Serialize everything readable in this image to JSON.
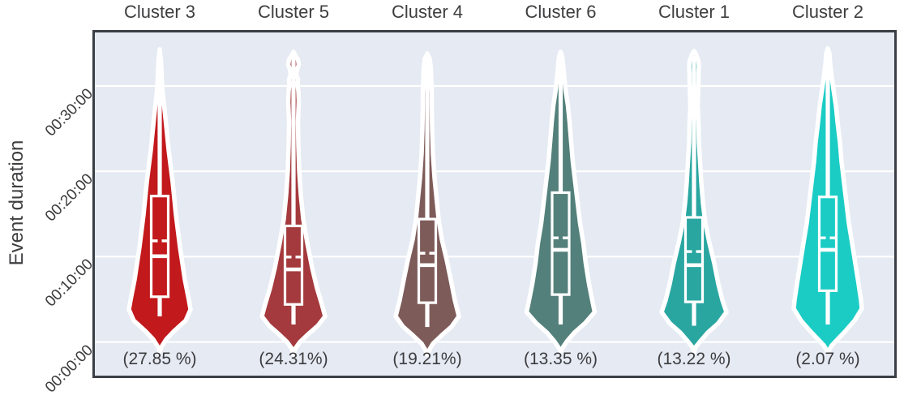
{
  "chart_data": {
    "type": "violin",
    "title": "",
    "xlabel": "",
    "ylabel": "Event duration",
    "y_ticks": [
      "00:00:00",
      "00:10:00",
      "00:20:00",
      "00:30:00"
    ],
    "ylim_minutes": [
      -4.1,
      36.5
    ],
    "grid": true,
    "legend": false,
    "colors": {
      "plot_background": "#e5eaf3",
      "gridline": "#ffffff",
      "axis_border": "#3a3e45",
      "text": "#3e3e40",
      "violin_outline": "#ffffff"
    },
    "clusters": [
      {
        "label": "Cluster 3",
        "share_label": "(27.85 %)",
        "share_pct": 27.85,
        "color": "#c2191c",
        "stats_min": {
          "whisker_low": 3.0,
          "q1": 5.3,
          "median": 10.05,
          "mean": 11.85,
          "q3": 17.1
        },
        "stats_hms": {
          "whisker_low": "00:03:00",
          "q1": "00:05:18",
          "median": "00:10:03",
          "mean": "00:11:51",
          "q3": "00:17:06"
        },
        "profile": [
          [
            34.3,
            0
          ],
          [
            33.0,
            1.5
          ],
          [
            29.8,
            3
          ],
          [
            26.3,
            7
          ],
          [
            22.5,
            11
          ],
          [
            18.7,
            16
          ],
          [
            14.9,
            20
          ],
          [
            11.1,
            25
          ],
          [
            7.3,
            31
          ],
          [
            4.9,
            36
          ],
          [
            3.8,
            38
          ],
          [
            2.5,
            32
          ],
          [
            1.3,
            18
          ],
          [
            0.3,
            8
          ],
          [
            -0.6,
            2
          ],
          [
            -1.1,
            0
          ]
        ]
      },
      {
        "label": "Cluster 5",
        "share_label": "(24.31%)",
        "share_pct": 24.31,
        "color": "#a43a3d",
        "stats_min": {
          "whisker_low": 2.05,
          "q1": 4.4,
          "median": 8.5,
          "mean": 9.95,
          "q3": 13.6
        },
        "stats_hms": {
          "whisker_low": "00:02:03",
          "q1": "00:04:24",
          "median": "00:08:30",
          "mean": "00:09:57",
          "q3": "00:13:36"
        },
        "profile": [
          [
            34.0,
            0
          ],
          [
            33.6,
            2
          ],
          [
            33.1,
            5.5
          ],
          [
            32.5,
            6.5
          ],
          [
            31.8,
            4
          ],
          [
            31.3,
            3.5
          ],
          [
            30.8,
            5.5
          ],
          [
            30.1,
            5
          ],
          [
            29.4,
            6
          ],
          [
            28.2,
            6.5
          ],
          [
            27.0,
            6
          ],
          [
            25.8,
            5.5
          ],
          [
            23.0,
            6
          ],
          [
            20.1,
            7
          ],
          [
            17.3,
            9
          ],
          [
            14.4,
            12
          ],
          [
            11.6,
            17
          ],
          [
            8.7,
            23
          ],
          [
            6.3,
            29
          ],
          [
            4.4,
            35
          ],
          [
            3.0,
            39
          ],
          [
            1.9,
            30
          ],
          [
            0.9,
            18
          ],
          [
            0.0,
            8
          ],
          [
            -0.8,
            2
          ],
          [
            -1.4,
            0
          ]
        ]
      },
      {
        "label": "Cluster 4",
        "share_label": "(19.21%)",
        "share_pct": 19.21,
        "color": "#7d5b59",
        "stats_min": {
          "whisker_low": 1.75,
          "q1": 4.6,
          "median": 9.0,
          "mean": 10.4,
          "q3": 14.4
        },
        "stats_hms": {
          "whisker_low": "00:01:45",
          "q1": "00:04:36",
          "median": "00:09:00",
          "mean": "00:10:24",
          "q3": "00:14:24"
        },
        "profile": [
          [
            33.8,
            0
          ],
          [
            33.2,
            3
          ],
          [
            32.0,
            4.5
          ],
          [
            30.6,
            5
          ],
          [
            29.1,
            5.5
          ],
          [
            27.7,
            5.5
          ],
          [
            24.9,
            6
          ],
          [
            22.0,
            7
          ],
          [
            19.2,
            9
          ],
          [
            16.3,
            12
          ],
          [
            14.4,
            14
          ],
          [
            12.0,
            18
          ],
          [
            9.6,
            24
          ],
          [
            7.3,
            29
          ],
          [
            4.9,
            34
          ],
          [
            3.0,
            39
          ],
          [
            1.8,
            30
          ],
          [
            0.7,
            17
          ],
          [
            -0.2,
            7
          ],
          [
            -1.0,
            2
          ],
          [
            -1.5,
            0
          ]
        ]
      },
      {
        "label": "Cluster 6",
        "share_label": "(13.35 %)",
        "share_pct": 13.35,
        "color": "#53807a",
        "stats_min": {
          "whisker_low": 2.05,
          "q1": 5.55,
          "median": 10.8,
          "mean": 12.2,
          "q3": 17.5
        },
        "stats_hms": {
          "whisker_low": "00:02:03",
          "q1": "00:05:33",
          "median": "00:10:48",
          "mean": "00:12:12",
          "q3": "00:17:30"
        },
        "profile": [
          [
            34.0,
            0
          ],
          [
            33.4,
            2
          ],
          [
            32.0,
            3.5
          ],
          [
            30.6,
            5
          ],
          [
            29.6,
            6
          ],
          [
            27.7,
            9
          ],
          [
            25.8,
            11
          ],
          [
            23.4,
            13
          ],
          [
            21.1,
            15
          ],
          [
            18.7,
            18
          ],
          [
            16.3,
            21
          ],
          [
            13.9,
            24
          ],
          [
            11.6,
            28
          ],
          [
            9.2,
            31
          ],
          [
            6.8,
            35
          ],
          [
            4.4,
            40
          ],
          [
            3.5,
            42
          ],
          [
            2.2,
            30
          ],
          [
            1.1,
            17
          ],
          [
            0.1,
            8
          ],
          [
            -0.6,
            3
          ],
          [
            -1.1,
            0
          ]
        ]
      },
      {
        "label": "Cluster 1",
        "share_label": "(13.22 %)",
        "share_pct": 13.22,
        "color": "#2aa6a1",
        "stats_min": {
          "whisker_low": 1.9,
          "q1": 4.7,
          "median": 9.0,
          "mean": 10.6,
          "q3": 14.6
        },
        "stats_hms": {
          "whisker_low": "00:01:54",
          "q1": "00:04:42",
          "median": "00:09:00",
          "mean": "00:10:36",
          "q3": "00:14:36"
        },
        "profile": [
          [
            34.1,
            0
          ],
          [
            33.7,
            2.5
          ],
          [
            32.9,
            5.5
          ],
          [
            32.3,
            6
          ],
          [
            31.5,
            5.5
          ],
          [
            30.5,
            5.5
          ],
          [
            29.0,
            5
          ],
          [
            27.7,
            4.5
          ],
          [
            25.8,
            5.5
          ],
          [
            23.4,
            6
          ],
          [
            21.1,
            7.5
          ],
          [
            18.7,
            9
          ],
          [
            16.3,
            11
          ],
          [
            13.9,
            14
          ],
          [
            11.6,
            19
          ],
          [
            9.2,
            25
          ],
          [
            6.8,
            30
          ],
          [
            4.9,
            35
          ],
          [
            3.5,
            40
          ],
          [
            2.2,
            30
          ],
          [
            1.1,
            17
          ],
          [
            0.1,
            8
          ],
          [
            -0.6,
            2
          ],
          [
            -1.2,
            0
          ]
        ]
      },
      {
        "label": "Cluster 2",
        "share_label": "(2.07 %)",
        "share_pct": 2.07,
        "color": "#1bccc5",
        "stats_min": {
          "whisker_low": 2.05,
          "q1": 6.0,
          "median": 10.8,
          "mean": 12.2,
          "q3": 17.0
        },
        "stats_hms": {
          "whisker_low": "00:02:03",
          "q1": "00:06:00",
          "median": "00:10:48",
          "mean": "00:12:12",
          "q3": "00:17:00"
        },
        "profile": [
          [
            34.4,
            0
          ],
          [
            33.8,
            2
          ],
          [
            32.5,
            3
          ],
          [
            31.0,
            5
          ],
          [
            29.6,
            7
          ],
          [
            27.7,
            10
          ],
          [
            25.8,
            12
          ],
          [
            23.4,
            15
          ],
          [
            21.1,
            17
          ],
          [
            18.7,
            20
          ],
          [
            16.3,
            23
          ],
          [
            13.9,
            26
          ],
          [
            11.6,
            30
          ],
          [
            9.2,
            34
          ],
          [
            6.8,
            38
          ],
          [
            4.9,
            41
          ],
          [
            3.9,
            42
          ],
          [
            2.5,
            33
          ],
          [
            1.3,
            22
          ],
          [
            0.3,
            12
          ],
          [
            -0.4,
            5
          ],
          [
            -1.2,
            0
          ]
        ]
      }
    ]
  }
}
